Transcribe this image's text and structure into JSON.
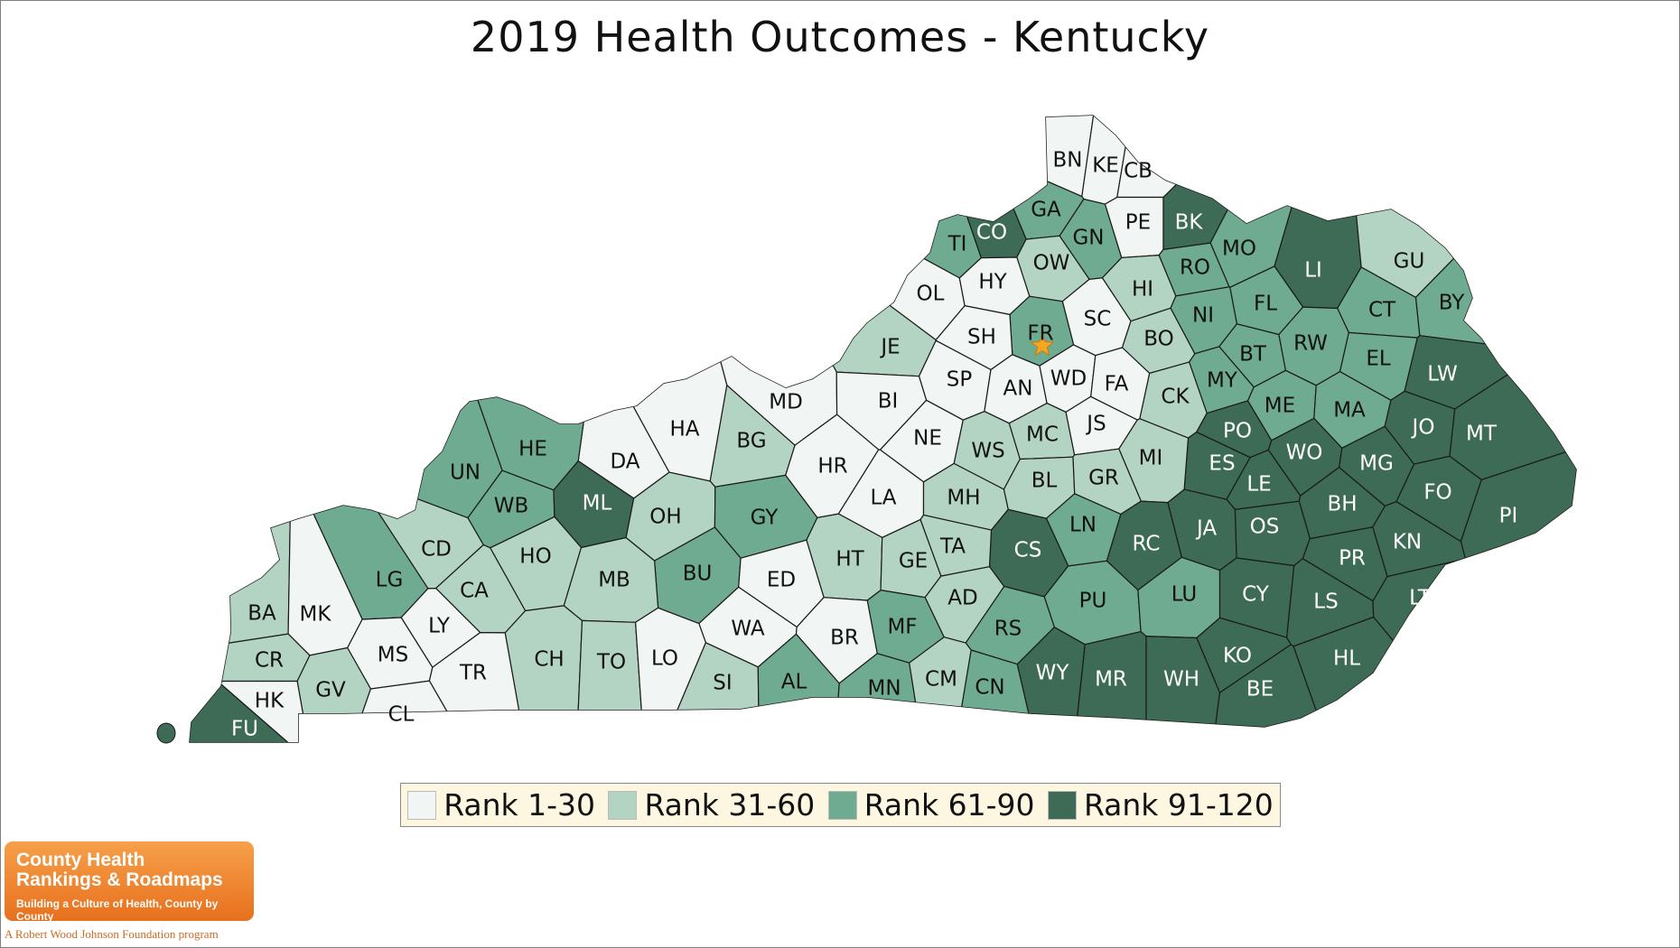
{
  "title": "2019 Health Outcomes - Kentucky",
  "colors": {
    "tier1": "#f1f5f3",
    "tier2": "#b3d4c2",
    "tier3": "#6fab90",
    "tier4": "#3d6b55",
    "label_dark": "#111111",
    "label_light": "#ffffff",
    "capital_star": "#f5a623"
  },
  "legend": [
    {
      "label": "Rank 1-30",
      "tier": 1
    },
    {
      "label": "Rank 31-60",
      "tier": 2
    },
    {
      "label": "Rank 61-90",
      "tier": 3
    },
    {
      "label": "Rank 91-120",
      "tier": 4
    }
  ],
  "capital_marker": "star-icon",
  "counties": [
    {
      "abbr": "BN",
      "tier": 1
    },
    {
      "abbr": "KE",
      "tier": 1
    },
    {
      "abbr": "CB",
      "tier": 1
    },
    {
      "abbr": "PE",
      "tier": 1
    },
    {
      "abbr": "GA",
      "tier": 3
    },
    {
      "abbr": "CO",
      "tier": 4
    },
    {
      "abbr": "TI",
      "tier": 3
    },
    {
      "abbr": "GN",
      "tier": 3
    },
    {
      "abbr": "BK",
      "tier": 4
    },
    {
      "abbr": "MO",
      "tier": 3
    },
    {
      "abbr": "LI",
      "tier": 4
    },
    {
      "abbr": "GU",
      "tier": 2
    },
    {
      "abbr": "BY",
      "tier": 3
    },
    {
      "abbr": "OW",
      "tier": 2
    },
    {
      "abbr": "RO",
      "tier": 3
    },
    {
      "abbr": "OL",
      "tier": 1
    },
    {
      "abbr": "HY",
      "tier": 1
    },
    {
      "abbr": "HI",
      "tier": 2
    },
    {
      "abbr": "FL",
      "tier": 3
    },
    {
      "abbr": "CT",
      "tier": 3
    },
    {
      "abbr": "NI",
      "tier": 3
    },
    {
      "abbr": "SC",
      "tier": 1
    },
    {
      "abbr": "FR",
      "tier": 3
    },
    {
      "abbr": "SH",
      "tier": 1
    },
    {
      "abbr": "JE",
      "tier": 2
    },
    {
      "abbr": "BO",
      "tier": 2
    },
    {
      "abbr": "BT",
      "tier": 3
    },
    {
      "abbr": "RW",
      "tier": 3
    },
    {
      "abbr": "EL",
      "tier": 3
    },
    {
      "abbr": "LW",
      "tier": 4
    },
    {
      "abbr": "SP",
      "tier": 1
    },
    {
      "abbr": "AN",
      "tier": 1
    },
    {
      "abbr": "WD",
      "tier": 1
    },
    {
      "abbr": "FA",
      "tier": 1
    },
    {
      "abbr": "MY",
      "tier": 3
    },
    {
      "abbr": "CK",
      "tier": 2
    },
    {
      "abbr": "MD",
      "tier": 1
    },
    {
      "abbr": "BI",
      "tier": 1
    },
    {
      "abbr": "ME",
      "tier": 3
    },
    {
      "abbr": "MA",
      "tier": 3
    },
    {
      "abbr": "JO",
      "tier": 4
    },
    {
      "abbr": "MT",
      "tier": 4
    },
    {
      "abbr": "HA",
      "tier": 1
    },
    {
      "abbr": "DA",
      "tier": 1
    },
    {
      "abbr": "HE",
      "tier": 3
    },
    {
      "abbr": "UN",
      "tier": 3
    },
    {
      "abbr": "BG",
      "tier": 2
    },
    {
      "abbr": "NE",
      "tier": 1
    },
    {
      "abbr": "WS",
      "tier": 2
    },
    {
      "abbr": "MC",
      "tier": 2
    },
    {
      "abbr": "JS",
      "tier": 1
    },
    {
      "abbr": "PO",
      "tier": 4
    },
    {
      "abbr": "WO",
      "tier": 4
    },
    {
      "abbr": "ES",
      "tier": 4
    },
    {
      "abbr": "MG",
      "tier": 4
    },
    {
      "abbr": "MI",
      "tier": 2
    },
    {
      "abbr": "GR",
      "tier": 2
    },
    {
      "abbr": "BL",
      "tier": 2
    },
    {
      "abbr": "LE",
      "tier": 4
    },
    {
      "abbr": "HR",
      "tier": 1
    },
    {
      "abbr": "WB",
      "tier": 3
    },
    {
      "abbr": "ML",
      "tier": 4
    },
    {
      "abbr": "LA",
      "tier": 1
    },
    {
      "abbr": "MH",
      "tier": 2
    },
    {
      "abbr": "BH",
      "tier": 4
    },
    {
      "abbr": "FO",
      "tier": 4
    },
    {
      "abbr": "PI",
      "tier": 4
    },
    {
      "abbr": "OH",
      "tier": 2
    },
    {
      "abbr": "GY",
      "tier": 3
    },
    {
      "abbr": "OS",
      "tier": 4
    },
    {
      "abbr": "JA",
      "tier": 4
    },
    {
      "abbr": "LN",
      "tier": 3
    },
    {
      "abbr": "RC",
      "tier": 4
    },
    {
      "abbr": "KN",
      "tier": 4
    },
    {
      "abbr": "CD",
      "tier": 2
    },
    {
      "abbr": "HO",
      "tier": 2
    },
    {
      "abbr": "CS",
      "tier": 4
    },
    {
      "abbr": "TA",
      "tier": 2
    },
    {
      "abbr": "PR",
      "tier": 4
    },
    {
      "abbr": "HT",
      "tier": 2
    },
    {
      "abbr": "GE",
      "tier": 2
    },
    {
      "abbr": "LG",
      "tier": 3
    },
    {
      "abbr": "BU",
      "tier": 3
    },
    {
      "abbr": "ED",
      "tier": 1
    },
    {
      "abbr": "MB",
      "tier": 2
    },
    {
      "abbr": "CA",
      "tier": 2
    },
    {
      "abbr": "AD",
      "tier": 2
    },
    {
      "abbr": "PU",
      "tier": 3
    },
    {
      "abbr": "LU",
      "tier": 3
    },
    {
      "abbr": "CY",
      "tier": 4
    },
    {
      "abbr": "LS",
      "tier": 4
    },
    {
      "abbr": "LT",
      "tier": 4
    },
    {
      "abbr": "BA",
      "tier": 2
    },
    {
      "abbr": "MK",
      "tier": 1
    },
    {
      "abbr": "LY",
      "tier": 1
    },
    {
      "abbr": "WA",
      "tier": 1
    },
    {
      "abbr": "BR",
      "tier": 1
    },
    {
      "abbr": "MF",
      "tier": 3
    },
    {
      "abbr": "RS",
      "tier": 3
    },
    {
      "abbr": "CR",
      "tier": 2
    },
    {
      "abbr": "MS",
      "tier": 1
    },
    {
      "abbr": "TR",
      "tier": 1
    },
    {
      "abbr": "CH",
      "tier": 2
    },
    {
      "abbr": "TO",
      "tier": 2
    },
    {
      "abbr": "LO",
      "tier": 1
    },
    {
      "abbr": "KO",
      "tier": 4
    },
    {
      "abbr": "HL",
      "tier": 4
    },
    {
      "abbr": "GV",
      "tier": 2
    },
    {
      "abbr": "SI",
      "tier": 2
    },
    {
      "abbr": "AL",
      "tier": 3
    },
    {
      "abbr": "MN",
      "tier": 3
    },
    {
      "abbr": "CM",
      "tier": 2
    },
    {
      "abbr": "CN",
      "tier": 3
    },
    {
      "abbr": "WY",
      "tier": 4
    },
    {
      "abbr": "MR",
      "tier": 4
    },
    {
      "abbr": "WH",
      "tier": 4
    },
    {
      "abbr": "BE",
      "tier": 4
    },
    {
      "abbr": "HK",
      "tier": 1
    },
    {
      "abbr": "CL",
      "tier": 1
    },
    {
      "abbr": "FU",
      "tier": 4
    }
  ],
  "logo": {
    "line1": "County Health",
    "line2": "Rankings & Roadmaps",
    "line3": "Building a Culture of Health, County by County",
    "footer": "A Robert Wood Johnson Foundation program"
  }
}
